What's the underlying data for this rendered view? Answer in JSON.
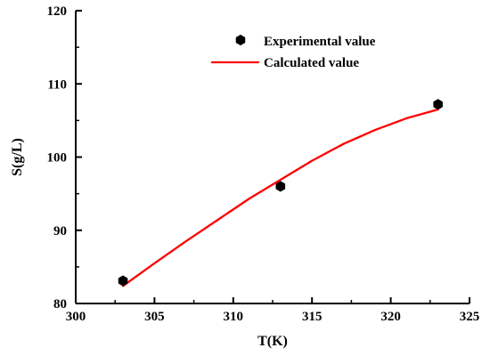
{
  "chart_data": {
    "type": "scatter",
    "xlabel": "T(K)",
    "ylabel": "S(g/L)",
    "xlim": [
      300,
      325
    ],
    "ylim": [
      80,
      120
    ],
    "x_ticks": [
      "300",
      "305",
      "310",
      "315",
      "320",
      "325"
    ],
    "y_ticks": [
      "80",
      "90",
      "100",
      "110",
      "120"
    ],
    "legend_position": "top-right",
    "series": [
      {
        "name": "Experimental value",
        "kind": "scatter",
        "color": "#000000",
        "x": [
          303,
          313,
          323
        ],
        "y": [
          83.1,
          96.0,
          107.2
        ]
      },
      {
        "name": "Calculated value",
        "kind": "line",
        "color": "#ff0000",
        "x": [
          303,
          305,
          307,
          309,
          311,
          313,
          315,
          317,
          319,
          321,
          323
        ],
        "y": [
          82.4,
          85.5,
          88.5,
          91.4,
          94.3,
          96.9,
          99.5,
          101.8,
          103.7,
          105.3,
          106.5
        ]
      }
    ]
  }
}
